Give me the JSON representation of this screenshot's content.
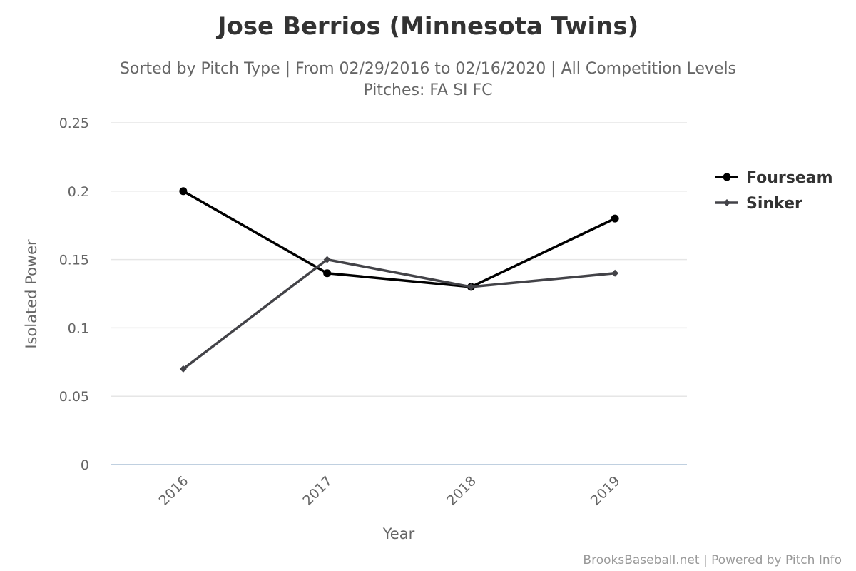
{
  "chart_data": {
    "type": "line",
    "title": "Jose Berrios (Minnesota Twins)",
    "subtitle": "Sorted by Pitch Type | From 02/29/2016 to 02/16/2020 | All Competition Levels",
    "subtitle2": "Pitches: FA SI FC",
    "xlabel": "Year",
    "ylabel": "Isolated Power",
    "categories": [
      "2016",
      "2017",
      "2018",
      "2019"
    ],
    "ylim": [
      0,
      0.25
    ],
    "yticks": [
      "0",
      "0.05",
      "0.1",
      "0.15",
      "0.2",
      "0.25"
    ],
    "grid": true,
    "legend_position": "right",
    "series": [
      {
        "name": "Fourseam",
        "values": [
          0.2,
          0.14,
          0.13,
          0.18
        ],
        "color": "#000000",
        "marker": "circle"
      },
      {
        "name": "Sinker",
        "values": [
          0.07,
          0.15,
          0.13,
          0.14
        ],
        "color": "#434348",
        "marker": "diamond"
      }
    ],
    "credit": "BrooksBaseball.net | Powered by Pitch Info"
  }
}
